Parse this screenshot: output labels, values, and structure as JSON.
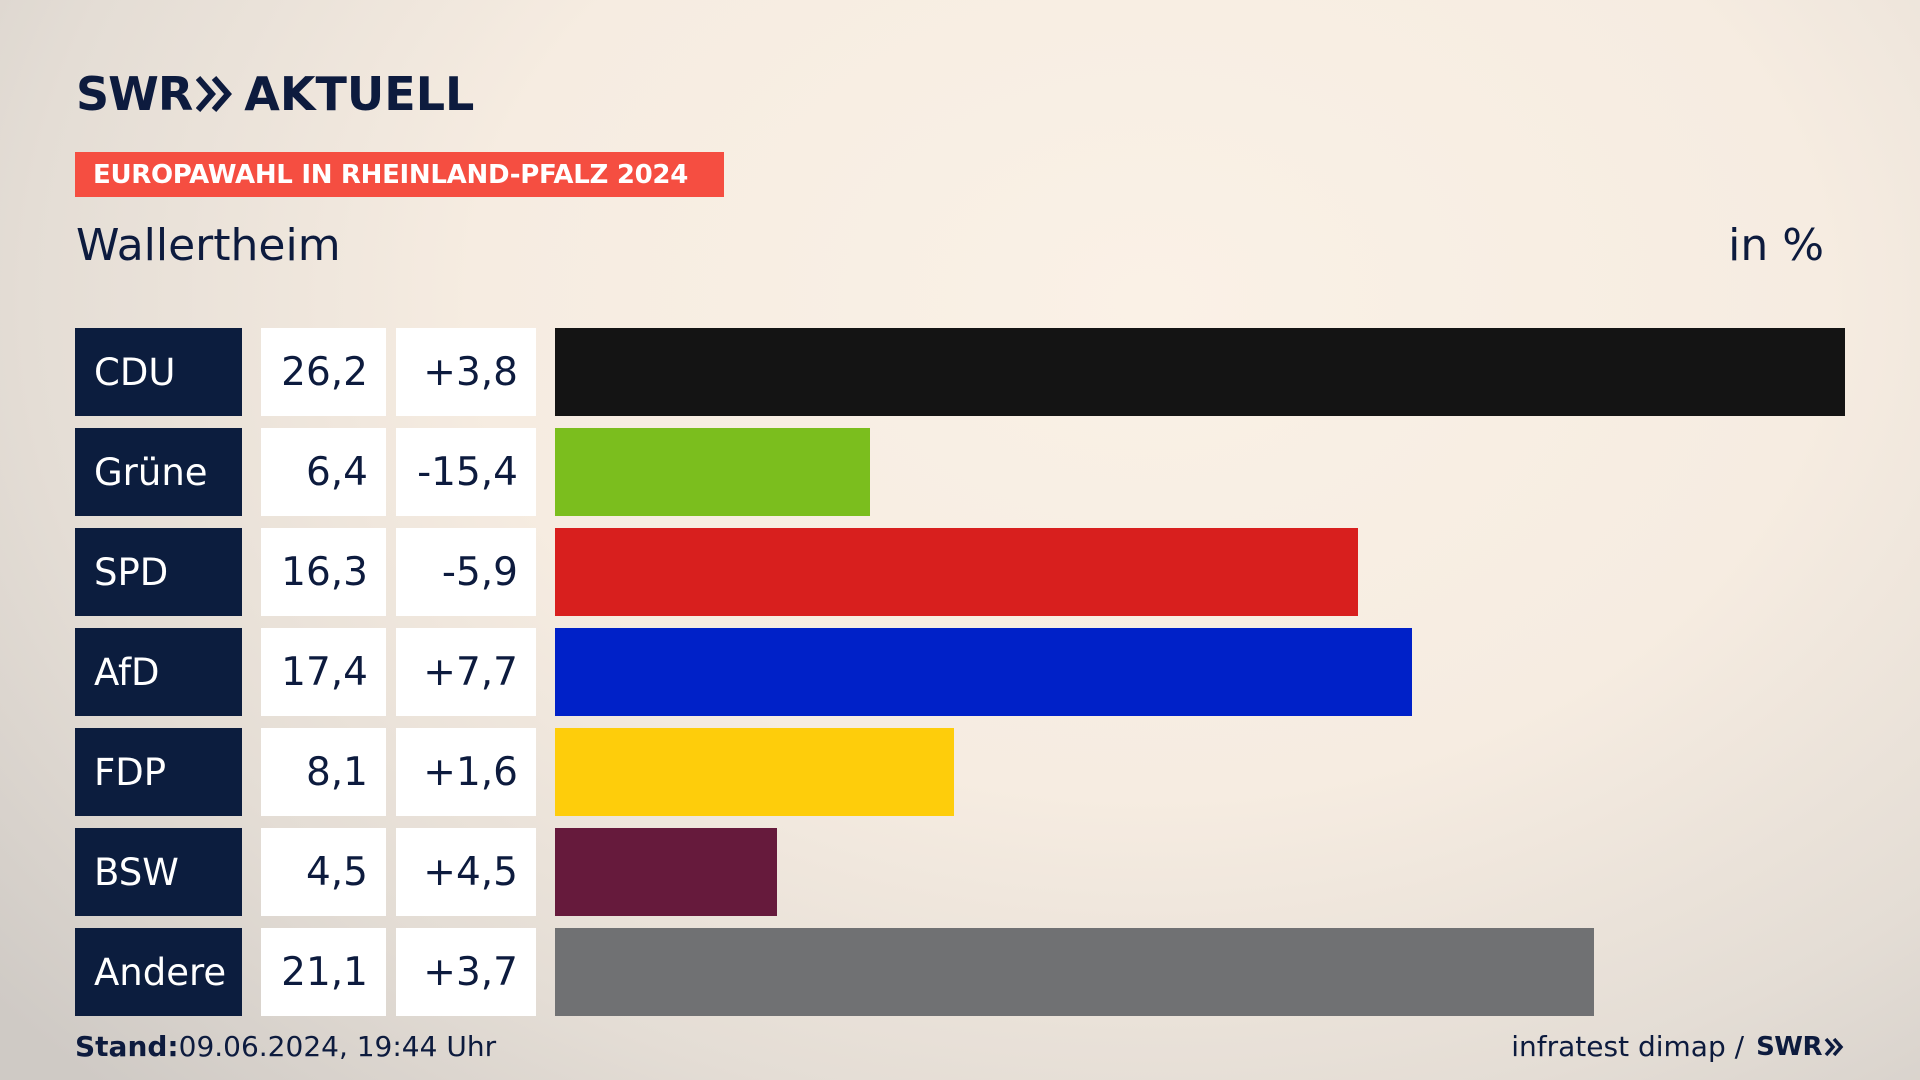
{
  "header": {
    "logo_swr": "SWR",
    "logo_aktuell": "AKTUELL",
    "banner": "EUROPAWAHL IN RHEINLAND-PFALZ 2024",
    "subtitle": "Wallertheim",
    "unit": "in %"
  },
  "colors": {
    "navy": "#0c1d3e",
    "banner": "#f54e41"
  },
  "chart_data": {
    "type": "bar",
    "orientation": "horizontal",
    "title": "EUROPAWAHL IN RHEINLAND-PFALZ 2024",
    "subtitle": "Wallertheim",
    "unit": "in %",
    "categories": [
      "CDU",
      "Grüne",
      "SPD",
      "AfD",
      "FDP",
      "BSW",
      "Andere"
    ],
    "values": [
      26.2,
      6.4,
      16.3,
      17.4,
      8.1,
      4.5,
      21.1
    ],
    "value_labels": [
      "26,2",
      "6,4",
      "16,3",
      "17,4",
      "8,1",
      "4,5",
      "21,1"
    ],
    "diff_labels": [
      "+3,8",
      "-15,4",
      "-5,9",
      "+7,7",
      "+1,6",
      "+4,5",
      "+3,7"
    ],
    "bar_colors": [
      "#141414",
      "#7bbe1e",
      "#d81f1e",
      "#0021c8",
      "#fecd0b",
      "#661a3c",
      "#707173"
    ],
    "xlim": [
      0,
      26.2
    ]
  },
  "footer": {
    "stand_label": "Stand:",
    "stand_value": "09.06.2024, 19:44 Uhr",
    "source": "infratest dimap /",
    "source_logo": "SWR"
  }
}
